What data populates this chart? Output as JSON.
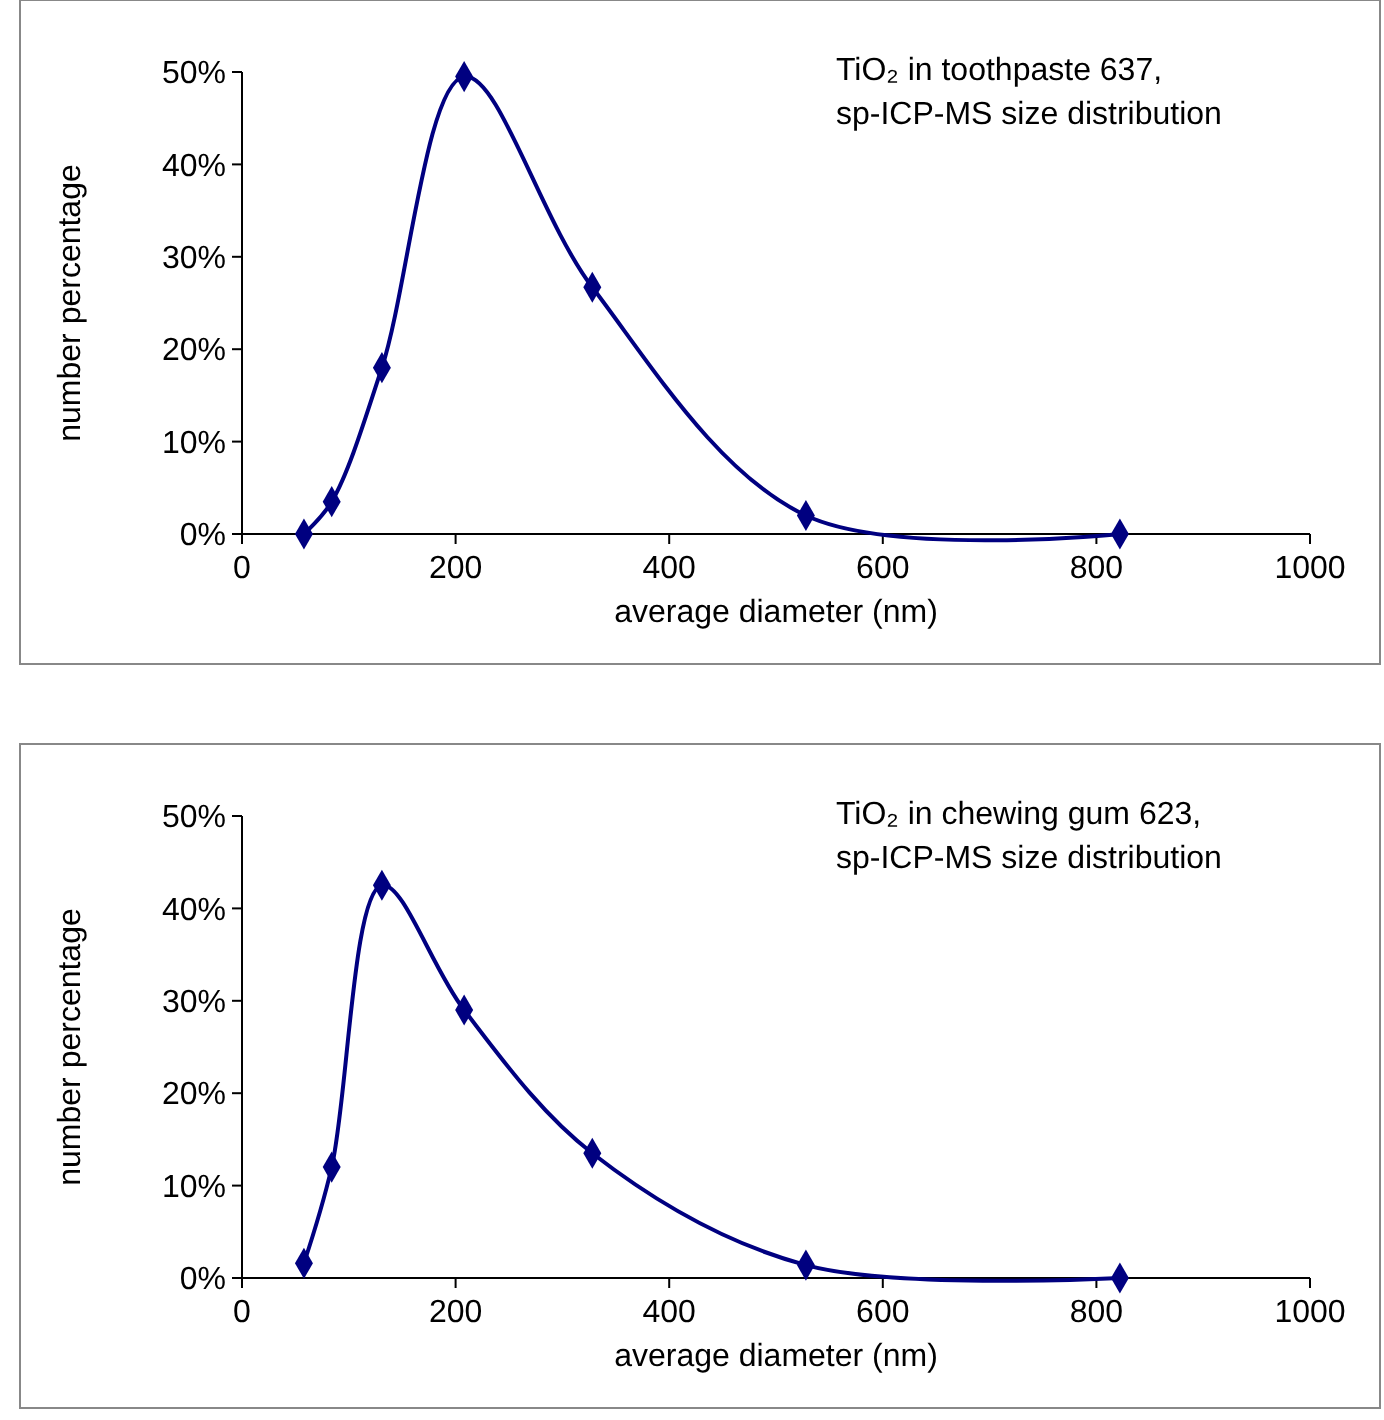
{
  "chart_data": [
    {
      "type": "line",
      "xlabel": "average diameter (nm)",
      "ylabel": "number percentage",
      "annotations": [
        "TiO₂ in toothpaste 637,\nsp-ICP-MS size distribution"
      ],
      "x": [
        58,
        84,
        131,
        208,
        328,
        528,
        822
      ],
      "series": [
        {
          "color": "#000080",
          "values": [
            0,
            3.5,
            18,
            49.5,
            26.7,
            2,
            0
          ]
        }
      ],
      "xlim": [
        0,
        1000
      ],
      "xticks": [
        0,
        200,
        400,
        600,
        800,
        1000
      ],
      "ylim": [
        0,
        50
      ],
      "yticks": [
        {
          "value": 0,
          "label": "0%"
        },
        {
          "value": 10,
          "label": "10%"
        },
        {
          "value": 20,
          "label": "20%"
        },
        {
          "value": 30,
          "label": "30%"
        },
        {
          "value": 40,
          "label": "40%"
        },
        {
          "value": 50,
          "label": "50%"
        }
      ],
      "marker": "diamond",
      "grid": false
    },
    {
      "type": "line",
      "xlabel": "average diameter (nm)",
      "ylabel": "number percentage",
      "annotations": [
        "TiO₂ in chewing gum 623,\nsp-ICP-MS size distribution"
      ],
      "x": [
        58,
        84,
        131,
        208,
        328,
        528,
        822
      ],
      "series": [
        {
          "color": "#000080",
          "values": [
            1.6,
            12,
            42.5,
            29,
            13.5,
            1.4,
            0
          ]
        }
      ],
      "xlim": [
        0,
        1000
      ],
      "xticks": [
        0,
        200,
        400,
        600,
        800,
        1000
      ],
      "ylim": [
        0,
        50
      ],
      "yticks": [
        {
          "value": 0,
          "label": "0%"
        },
        {
          "value": 10,
          "label": "10%"
        },
        {
          "value": 20,
          "label": "20%"
        },
        {
          "value": 30,
          "label": "30%"
        },
        {
          "value": 40,
          "label": "40%"
        },
        {
          "value": 50,
          "label": "50%"
        }
      ],
      "marker": "diamond",
      "grid": false
    }
  ]
}
